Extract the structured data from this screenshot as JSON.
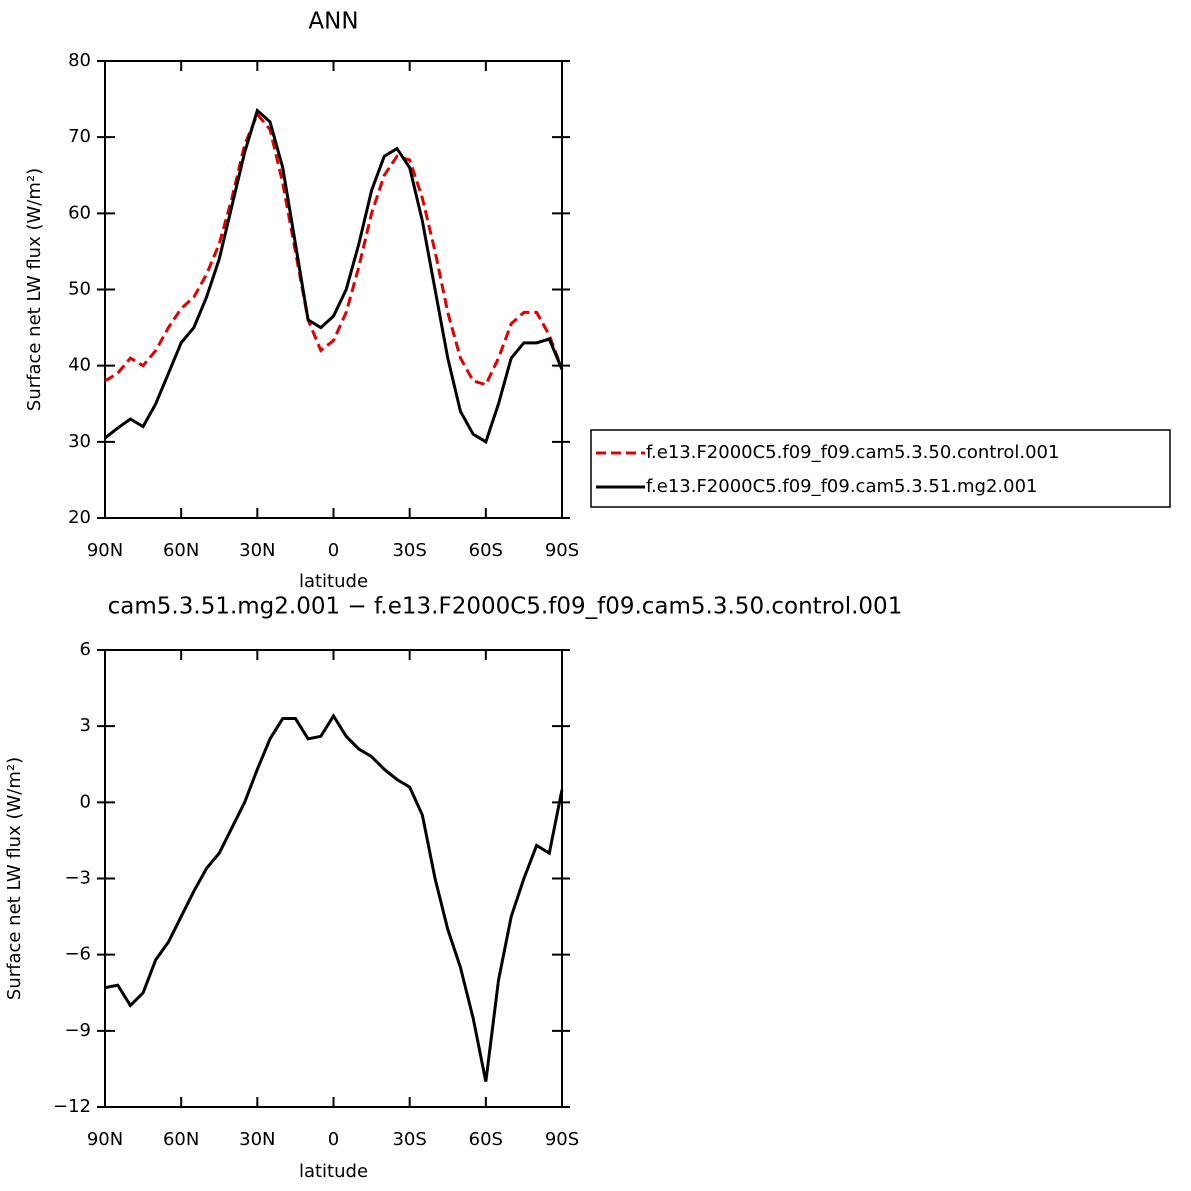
{
  "chart_data": [
    {
      "type": "line",
      "title": "ANN",
      "xlabel": "latitude",
      "ylabel": "Surface net LW flux (W/m²)",
      "x": [
        90,
        85,
        80,
        75,
        70,
        65,
        60,
        55,
        50,
        45,
        40,
        35,
        30,
        25,
        20,
        15,
        10,
        5,
        0,
        -5,
        -10,
        -15,
        -20,
        -25,
        -30,
        -35,
        -40,
        -45,
        -50,
        -55,
        -60,
        -65,
        -70,
        -75,
        -80,
        -85,
        -90
      ],
      "series": [
        {
          "name": "f.e13.F2000C5.f09_f09.cam5.3.50.control.001",
          "color": "#e00000",
          "dash": true,
          "values": [
            38,
            39,
            41,
            40,
            42,
            45,
            47.5,
            49,
            52,
            56,
            62,
            69,
            73,
            71,
            64,
            55,
            46,
            42,
            43.3,
            47,
            53,
            60,
            65,
            67.5,
            67,
            62,
            55,
            47,
            41,
            38,
            37.5,
            41,
            45.5,
            47,
            47,
            44,
            39.5
          ]
        },
        {
          "name": "f.e13.F2000C5.f09_f09.cam5.3.51.mg2.001",
          "color": "#000000",
          "dash": false,
          "values": [
            30.5,
            31.8,
            33,
            32,
            35,
            39,
            43,
            45,
            49,
            54,
            61,
            68,
            73.5,
            72,
            66,
            56,
            46,
            45,
            46.5,
            50,
            56,
            63,
            67.5,
            68.5,
            66,
            59,
            50,
            41,
            34,
            31,
            30,
            35,
            41,
            43,
            43,
            43.5,
            39.5
          ]
        }
      ],
      "xlim": [
        90,
        -90
      ],
      "ylim": [
        20,
        80
      ],
      "xticks": [
        {
          "value": 90,
          "label": "90N"
        },
        {
          "value": 60,
          "label": "60N"
        },
        {
          "value": 30,
          "label": "30N"
        },
        0,
        {
          "value": -30,
          "label": "30S"
        },
        {
          "value": -60,
          "label": "60S"
        },
        {
          "value": -90,
          "label": "90S"
        }
      ],
      "yticks": [
        20,
        30,
        40,
        50,
        60,
        70,
        80
      ],
      "legend": "right"
    },
    {
      "type": "line",
      "title": "cam5.3.51.mg2.001 − f.e13.F2000C5.f09_f09.cam5.3.50.control.001",
      "xlabel": "latitude",
      "ylabel": "Surface net LW flux (W/m²)",
      "x": [
        90,
        85,
        80,
        75,
        70,
        65,
        60,
        55,
        50,
        45,
        40,
        35,
        30,
        25,
        20,
        15,
        10,
        5,
        0,
        -5,
        -10,
        -15,
        -20,
        -25,
        -30,
        -35,
        -40,
        -45,
        -50,
        -55,
        -60,
        -65,
        -70,
        -75,
        -80,
        -85,
        -90
      ],
      "series": [
        {
          "color": "#000000",
          "dash": false,
          "values": [
            -7.3,
            -7.2,
            -8,
            -7.5,
            -6.2,
            -5.5,
            -4.5,
            -3.5,
            -2.6,
            -2,
            -1,
            0,
            1.3,
            2.5,
            3.3,
            3.3,
            2.5,
            2.6,
            3.4,
            2.6,
            2.1,
            1.8,
            1.3,
            0.9,
            0.6,
            -0.5,
            -3,
            -5,
            -6.5,
            -8.5,
            -11,
            -7,
            -4.5,
            -3,
            -1.7,
            -2,
            0.5
          ]
        }
      ],
      "xlim": [
        90,
        -90
      ],
      "ylim": [
        -12,
        6
      ],
      "xticks": [
        {
          "value": 90,
          "label": "90N"
        },
        {
          "value": 60,
          "label": "60N"
        },
        {
          "value": 30,
          "label": "30N"
        },
        0,
        {
          "value": -30,
          "label": "30S"
        },
        {
          "value": -60,
          "label": "60S"
        },
        {
          "value": -90,
          "label": "90S"
        }
      ],
      "yticks": [
        {
          "value": -12,
          "label": "−12"
        },
        {
          "value": -9,
          "label": "−9"
        },
        {
          "value": -6,
          "label": "−6"
        },
        {
          "value": -3,
          "label": "−3"
        },
        0,
        3,
        6
      ]
    }
  ]
}
